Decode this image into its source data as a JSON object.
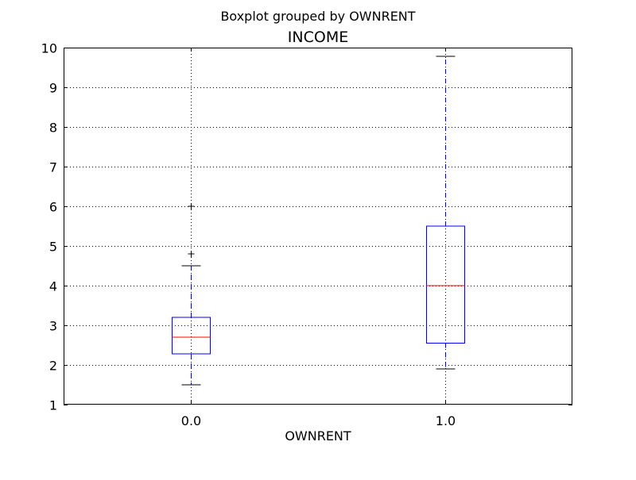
{
  "suptitle": "Boxplot grouped by OWNRENT",
  "chart_data": {
    "type": "box",
    "title": "INCOME",
    "xlabel": "OWNRENT",
    "ylabel": "",
    "ylim": [
      1,
      10
    ],
    "yticks": [
      1,
      2,
      3,
      4,
      5,
      6,
      7,
      8,
      9,
      10
    ],
    "grid": true,
    "categories": [
      "0.0",
      "1.0"
    ],
    "boxes": [
      {
        "category": "0.0",
        "whisker_low": 1.5,
        "q1": 2.28,
        "median": 2.7,
        "q3": 3.2,
        "whisker_high": 4.5,
        "outliers": [
          4.8,
          6.0
        ]
      },
      {
        "category": "1.0",
        "whisker_low": 1.9,
        "q1": 2.55,
        "median": 4.0,
        "q3": 5.5,
        "whisker_high": 9.78,
        "outliers": []
      }
    ],
    "colors": {
      "box": "#0000ff",
      "median": "#ff0000",
      "cap": "#000000",
      "grid": "#000000",
      "flier": "#000000"
    }
  }
}
